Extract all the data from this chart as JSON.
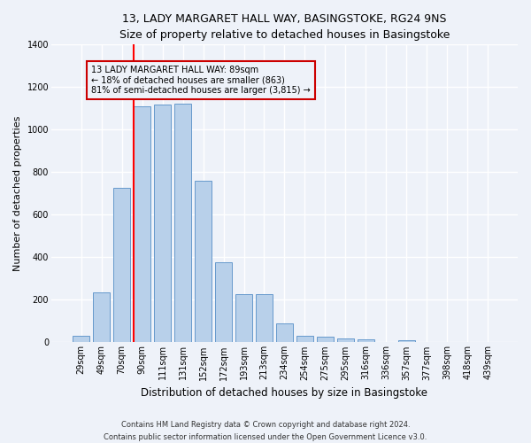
{
  "title": "13, LADY MARGARET HALL WAY, BASINGSTOKE, RG24 9NS",
  "subtitle": "Size of property relative to detached houses in Basingstoke",
  "xlabel": "Distribution of detached houses by size in Basingstoke",
  "ylabel": "Number of detached properties",
  "bar_labels": [
    "29sqm",
    "49sqm",
    "70sqm",
    "90sqm",
    "111sqm",
    "131sqm",
    "152sqm",
    "172sqm",
    "193sqm",
    "213sqm",
    "234sqm",
    "254sqm",
    "275sqm",
    "295sqm",
    "316sqm",
    "336sqm",
    "357sqm",
    "377sqm",
    "398sqm",
    "418sqm",
    "439sqm"
  ],
  "bar_values": [
    30,
    235,
    725,
    1110,
    1115,
    1120,
    760,
    375,
    225,
    225,
    90,
    30,
    25,
    20,
    15,
    0,
    10,
    0,
    0,
    0,
    0
  ],
  "bar_color": "#b8d0ea",
  "bar_edge_color": "#6699cc",
  "annotation_line1": "13 LADY MARGARET HALL WAY: 89sqm",
  "annotation_line2": "← 18% of detached houses are smaller (863)",
  "annotation_line3": "81% of semi-detached houses are larger (3,815) →",
  "annotation_box_color": "#cc0000",
  "red_line_index": 3,
  "ylim": [
    0,
    1400
  ],
  "yticks": [
    0,
    200,
    400,
    600,
    800,
    1000,
    1200,
    1400
  ],
  "footnote1": "Contains HM Land Registry data © Crown copyright and database right 2024.",
  "footnote2": "Contains public sector information licensed under the Open Government Licence v3.0.",
  "background_color": "#eef2f9",
  "grid_color": "#ffffff",
  "title_fontsize": 9,
  "subtitle_fontsize": 8.5,
  "ylabel_fontsize": 8,
  "xlabel_fontsize": 8.5,
  "tick_fontsize": 7,
  "annot_fontsize": 7,
  "footnote_fontsize": 6
}
